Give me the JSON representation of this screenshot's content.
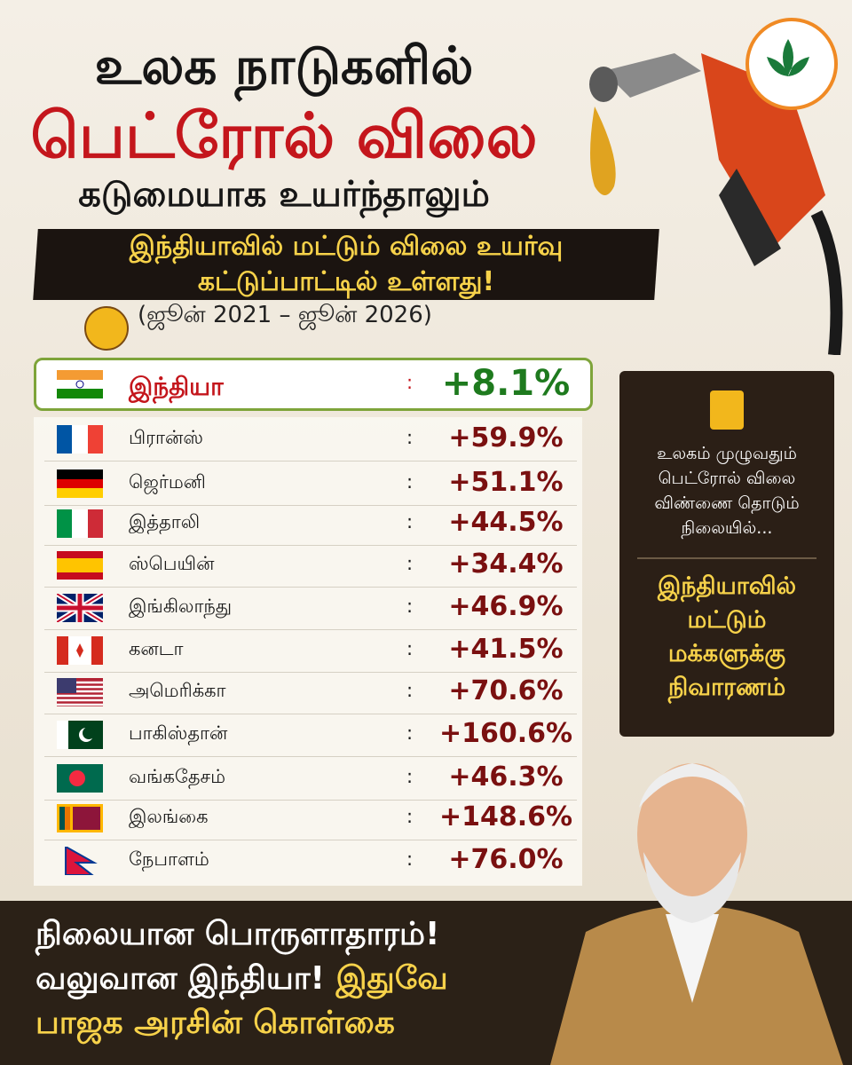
{
  "header": {
    "title_lines": [
      "உலக நாடுகளில்",
      "பெட்ரோல் விலை",
      "கடுமையாக உயர்ந்தாலும்"
    ],
    "banner_lines": [
      "இந்தியாவில் மட்டும் விலை உயர்வு",
      "கட்டுப்பாட்டில் உள்ளது!"
    ],
    "period": "(ஜூன் 2021 – ஜூன் 2026)"
  },
  "table": {
    "separator": ":",
    "rows": [
      [
        "இந்தியா",
        "+8.1%"
      ],
      [
        "பிரான்ஸ்",
        "+59.9%"
      ],
      [
        "ஜெர்மனி",
        "+51.1%"
      ],
      [
        "இத்தாலி",
        "+44.5%"
      ],
      [
        "ஸ்பெயின்",
        "+34.4%"
      ],
      [
        "இங்கிலாந்து",
        "+46.9%"
      ],
      [
        "கனடா",
        "+41.5%"
      ],
      [
        "அமெரிக்கா",
        "+70.6%"
      ],
      [
        "பாகிஸ்தான்",
        "+160.6%"
      ],
      [
        "வங்கதேசம்",
        "+46.3%"
      ],
      [
        "இலங்கை",
        "+148.6%"
      ],
      [
        "நேபாளம்",
        "+76.0%"
      ]
    ]
  },
  "side_box": {
    "lines": [
      "உலகம் முழுவதும்",
      "பெட்ரோல் விலை",
      "விண்ணை தொடும்",
      "நிலையில்..."
    ],
    "highlight_lines": [
      "இந்தியாவில்",
      "மட்டும்",
      "மக்களுக்கு",
      "நிவாரணம்"
    ]
  },
  "footer": {
    "line1": "நிலையான பொருளாதாரம்!",
    "line2": "வலுவான இந்தியா!",
    "line2_highlight": "இதுவே",
    "line3": "பாஜக அரசின் கொள்கை"
  }
}
